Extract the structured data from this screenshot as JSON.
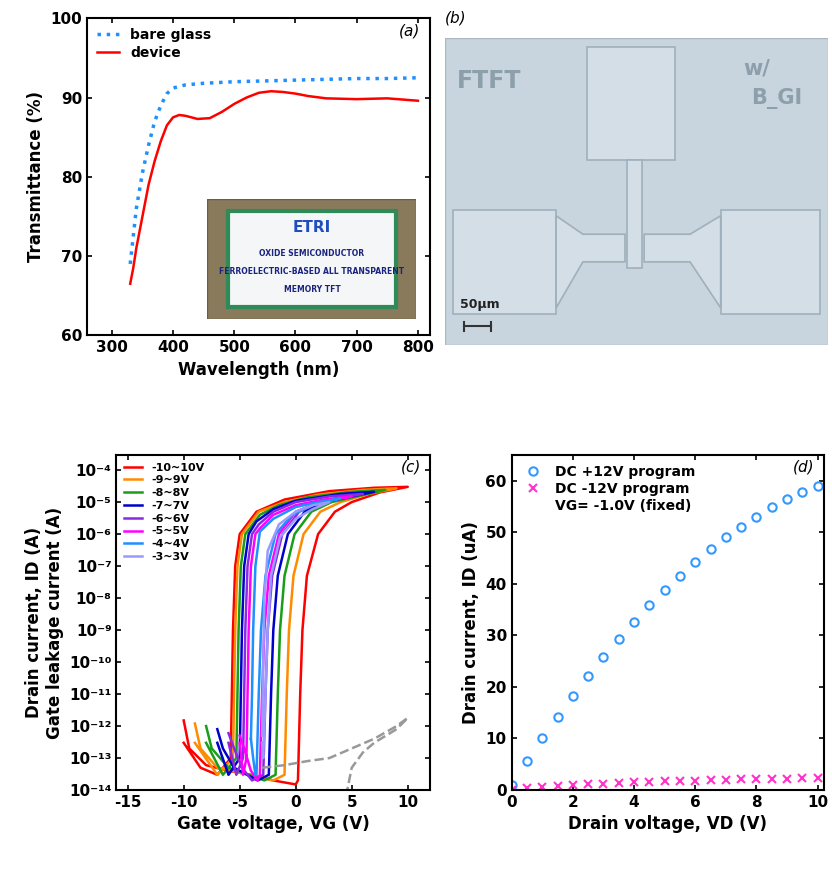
{
  "chart_data": [
    {
      "type": "line",
      "title": "(a)",
      "x_label": "Wavelength (nm)",
      "y_label": "Transmittance (%)",
      "xlim": [
        260,
        820
      ],
      "xticks": [
        300,
        400,
        500,
        600,
        700,
        800
      ],
      "ylim": [
        60,
        100
      ],
      "yticks": [
        60,
        70,
        80,
        90,
        100
      ],
      "legend": "upper left",
      "series": [
        {
          "name": "bare glass",
          "color": "#1e90ff",
          "line_style": "dotted",
          "x": [
            330,
            335,
            340,
            350,
            360,
            370,
            380,
            390,
            400,
            420,
            450,
            500,
            550,
            600,
            650,
            700,
            750,
            800
          ],
          "values": [
            69,
            72.5,
            76,
            80.5,
            84,
            87,
            89,
            90.5,
            91.2,
            91.6,
            91.8,
            92.0,
            92.1,
            92.2,
            92.3,
            92.4,
            92.4,
            92.5
          ]
        },
        {
          "name": "device",
          "color": "#ff0000",
          "line_style": "solid",
          "x": [
            330,
            335,
            340,
            350,
            360,
            370,
            380,
            390,
            400,
            410,
            420,
            440,
            460,
            480,
            500,
            520,
            540,
            560,
            580,
            600,
            620,
            650,
            700,
            750,
            800
          ],
          "values": [
            66.5,
            68.5,
            71,
            75,
            79,
            82,
            84.5,
            86.5,
            87.5,
            87.8,
            87.7,
            87.3,
            87.4,
            88.2,
            89.2,
            90,
            90.6,
            90.8,
            90.7,
            90.5,
            90.2,
            89.9,
            89.8,
            89.9,
            89.6
          ]
        }
      ],
      "inset": {
        "title": "ETRI",
        "texts": [
          "OXIDE SEMICONDUCTOR",
          "FERROELECTRIC-BASED ALL TRANSPARENT",
          "MEMORY TFT"
        ]
      }
    },
    {
      "type": "line",
      "title": "(c)",
      "log": "y",
      "x_label": "Gate voltage, VG (V)",
      "y_label": "Drain current, ID (A)\nGate leakage current (A)",
      "xlim": [
        -16,
        12
      ],
      "xticks": [
        -15,
        -10,
        -5,
        0,
        5,
        10
      ],
      "ylim": [
        1e-14,
        0.0003
      ],
      "yticks": [
        {
          "value": 1e-14,
          "label": "10⁻¹⁴"
        },
        {
          "value": 1e-13,
          "label": "10⁻¹³"
        },
        {
          "value": 1e-12,
          "label": "10⁻¹²"
        },
        {
          "value": 1e-11,
          "label": "10⁻¹¹"
        },
        {
          "value": 1e-10,
          "label": "10⁻¹⁰"
        },
        {
          "value": 1e-09,
          "label": "10⁻⁹"
        },
        {
          "value": 1e-08,
          "label": "10⁻⁸"
        },
        {
          "value": 1e-07,
          "label": "10⁻⁷"
        },
        {
          "value": 1e-06,
          "label": "10⁻⁶"
        },
        {
          "value": 1e-05,
          "label": "10⁻⁵"
        },
        {
          "value": 0.0001,
          "label": "10⁻⁴"
        }
      ],
      "legend": "upper left",
      "series": [
        {
          "name": "-10~10V",
          "color": "#ff0000",
          "line_style": "solid",
          "x": [
            -10,
            -9.5,
            -8,
            -6,
            -4,
            -2,
            0,
            0.2,
            0.4,
            0.6,
            1.0,
            2,
            3.5,
            5,
            7.5,
            10,
            7,
            3,
            -1,
            -3.5,
            -5,
            -5.4,
            -5.6,
            -5.7,
            -5.8,
            -7,
            -8.5,
            -10
          ],
          "values": [
            1.5e-12,
            2e-13,
            6e-14,
            4e-14,
            3e-14,
            2e-14,
            1.5e-14,
            2e-14,
            1e-11,
            1e-09,
            5e-08,
            1e-06,
            5e-06,
            1e-05,
            2e-05,
            3e-05,
            2.8e-05,
            2.2e-05,
            1.2e-05,
            5e-06,
            1e-06,
            1e-07,
            1e-09,
            1e-11,
            1e-13,
            3e-14,
            5e-14,
            3e-13
          ]
        },
        {
          "name": "-9~9V",
          "color": "#ff8c00",
          "line_style": "solid",
          "x": [
            -9,
            -8.5,
            -7,
            -2,
            -1,
            -0.8,
            -0.6,
            -0.2,
            0.7,
            2.2,
            4,
            6.5,
            9,
            6,
            2,
            -1,
            -3.3,
            -4.8,
            -5.2,
            -5.4,
            -5.5,
            -5.6,
            -7,
            -9
          ],
          "values": [
            1.2e-12,
            2e-13,
            5e-14,
            2e-14,
            3e-14,
            1e-11,
            1e-09,
            5e-08,
            1e-06,
            5e-06,
            1e-05,
            1.8e-05,
            2.7e-05,
            2.4e-05,
            1.7e-05,
            1e-05,
            5e-06,
            1e-06,
            1e-07,
            1e-09,
            1e-11,
            1e-13,
            3e-14,
            3e-13
          ]
        },
        {
          "name": "-8~8V",
          "color": "#1a9e1a",
          "line_style": "solid",
          "x": [
            -8,
            -7.5,
            -6,
            -2.8,
            -1.8,
            -1.6,
            -1.4,
            -1.0,
            -0.1,
            1.4,
            3.2,
            8,
            5,
            1,
            -1.5,
            -3.2,
            -4.5,
            -4.9,
            -5.1,
            -5.2,
            -5.3,
            -6.5,
            -8
          ],
          "values": [
            1e-12,
            2e-13,
            5e-14,
            2e-14,
            3e-14,
            1e-11,
            1e-09,
            5e-08,
            1e-06,
            5e-06,
            1e-05,
            2.4e-05,
            2.1e-05,
            1.4e-05,
            8e-06,
            4e-06,
            1e-06,
            1e-07,
            1e-09,
            1e-11,
            1e-13,
            3e-14,
            3e-13
          ]
        },
        {
          "name": "-7~7V",
          "color": "#0000cc",
          "line_style": "solid",
          "x": [
            -7,
            -6.5,
            -5.5,
            -3.4,
            -2.4,
            -2.2,
            -2.0,
            -1.6,
            -0.7,
            0.8,
            2.6,
            7,
            4,
            0,
            -2,
            -3.5,
            -4.2,
            -4.6,
            -4.8,
            -4.9,
            -5.0,
            -6,
            -7
          ],
          "values": [
            8e-13,
            2e-13,
            5e-14,
            2e-14,
            3e-14,
            1e-11,
            1e-09,
            5e-08,
            1e-06,
            5e-06,
            1e-05,
            2.1e-05,
            1.8e-05,
            1.1e-05,
            6e-06,
            2.5e-06,
            1e-06,
            1e-07,
            1e-09,
            1e-11,
            1e-13,
            3e-14,
            3e-13
          ]
        },
        {
          "name": "-6~6V",
          "color": "#8a2be2",
          "line_style": "solid",
          "x": [
            -6,
            -5.5,
            -4.8,
            -3.9,
            -2.9,
            -2.7,
            -2.5,
            -2.1,
            -1.2,
            0.3,
            2.1,
            6,
            3,
            0,
            -2,
            -3.3,
            -3.9,
            -4.3,
            -4.5,
            -4.6,
            -4.7,
            -5.3,
            -6
          ],
          "values": [
            6e-13,
            2e-13,
            5e-14,
            2e-14,
            3e-14,
            1e-11,
            1e-09,
            5e-08,
            1e-06,
            5e-06,
            1e-05,
            1.8e-05,
            1.5e-05,
            1e-05,
            5e-06,
            2e-06,
            1e-06,
            1e-07,
            1e-09,
            1e-11,
            1e-13,
            3e-14,
            3e-13
          ]
        },
        {
          "name": "-5~5V",
          "color": "#ff00ff",
          "line_style": "solid",
          "x": [
            -5,
            -4.6,
            -4.0,
            -3.4,
            -3.2,
            -3.0,
            -2.8,
            -2.4,
            -1.5,
            0,
            1.8,
            5,
            2.5,
            0,
            -2,
            -3.2,
            -3.6,
            -4.0,
            -4.2,
            -4.3,
            -4.4,
            -4.7,
            -5
          ],
          "values": [
            5e-13,
            2e-13,
            4e-14,
            2e-14,
            3e-14,
            1e-11,
            1e-09,
            5e-08,
            1e-06,
            5e-06,
            9e-06,
            1.5e-05,
            1.2e-05,
            8e-06,
            4e-06,
            1.5e-06,
            1e-06,
            1e-07,
            1e-09,
            1e-11,
            1e-13,
            3e-14,
            3e-13
          ]
        },
        {
          "name": "-4~4V",
          "color": "#1e90ff",
          "line_style": "solid",
          "x": [
            -4,
            -3.8,
            -3.6,
            -3.5,
            -3.3,
            -3.1,
            -2.7,
            -1.8,
            -0.3,
            1.5,
            4,
            2,
            0,
            -2,
            -3.2,
            -3.6,
            -3.8,
            -3.9,
            -4
          ],
          "values": [
            4e-13,
            1e-13,
            3e-14,
            3e-14,
            1e-11,
            1e-09,
            5e-08,
            1e-06,
            4e-06,
            8e-06,
            1.3e-05,
            1e-05,
            7e-06,
            3e-06,
            1.2e-06,
            1e-07,
            1e-09,
            1e-11,
            4e-13
          ]
        },
        {
          "name": "-3~3V",
          "color": "#9999ff",
          "line_style": "solid",
          "x": [
            -3,
            -2.9,
            -2.7,
            -2.5,
            -2.2,
            -1.4,
            0,
            1.5,
            3,
            1.5,
            0,
            -1.5,
            -2.5,
            -2.8,
            -2.9,
            -3
          ],
          "values": [
            3e-13,
            1e-13,
            1e-11,
            1e-09,
            5e-08,
            8e-07,
            3e-06,
            6e-06,
            1e-05,
            8e-06,
            5e-06,
            2e-06,
            3e-07,
            1e-08,
            1e-10,
            5e-13
          ]
        },
        {
          "color": "#999999",
          "line_style": "dashed",
          "x": [
            -3,
            -1,
            1,
            3,
            5,
            7,
            9,
            10,
            9,
            7,
            6,
            5,
            4.6
          ],
          "values": [
            5e-14,
            6e-14,
            8e-14,
            1e-13,
            2e-13,
            4e-13,
            1e-12,
            1.8e-12,
            8e-13,
            3e-13,
            1.5e-13,
            5e-14,
            1e-14
          ]
        }
      ]
    },
    {
      "type": "scatter",
      "title": "(d)",
      "x_label": "Drain voltage, VD (V)",
      "y_label": "Drain current, ID (uA)",
      "xlim": [
        0,
        10.2
      ],
      "xticks": [
        0,
        2,
        4,
        6,
        8,
        10
      ],
      "ylim": [
        0,
        65
      ],
      "yticks": [
        0,
        10,
        20,
        30,
        40,
        50,
        60
      ],
      "legend": "upper left",
      "annotation": "VG= -1.0V (fixed)",
      "series": [
        {
          "name": "DC +12V program",
          "color": "#3399ff",
          "marker": "circle",
          "line_style": "none",
          "x": [
            0,
            0.5,
            1,
            1.5,
            2,
            2.5,
            3,
            3.5,
            4,
            4.5,
            5,
            5.5,
            6,
            6.5,
            7,
            7.5,
            8,
            8.5,
            9,
            9.5,
            10
          ],
          "values": [
            1.0,
            5.6,
            10.0,
            14.2,
            18.2,
            22.1,
            25.8,
            29.3,
            32.6,
            35.8,
            38.8,
            41.6,
            44.2,
            46.7,
            49.0,
            51.1,
            53.0,
            54.8,
            56.4,
            57.8,
            59.0
          ]
        },
        {
          "name": "DC -12V program",
          "color": "#ff33cc",
          "marker": "x",
          "line_style": "none",
          "x": [
            0,
            0.5,
            1,
            1.5,
            2,
            2.5,
            3,
            3.5,
            4,
            4.5,
            5,
            5.5,
            6,
            6.5,
            7,
            7.5,
            8,
            8.5,
            9,
            9.5,
            10
          ],
          "values": [
            0.1,
            0.4,
            0.6,
            0.8,
            1.0,
            1.1,
            1.25,
            1.4,
            1.5,
            1.6,
            1.7,
            1.8,
            1.85,
            1.9,
            2.0,
            2.05,
            2.1,
            2.15,
            2.2,
            2.25,
            2.3
          ]
        }
      ]
    }
  ],
  "image": {
    "title": "(b)",
    "texts": [
      "FTFT",
      "w/",
      "B_GI"
    ],
    "scale_bar": "50µm"
  }
}
